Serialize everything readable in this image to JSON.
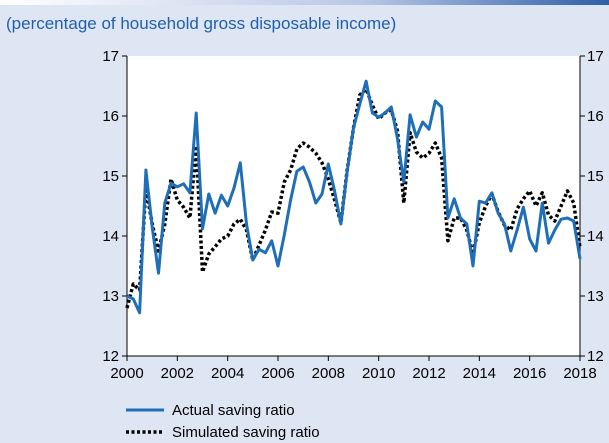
{
  "subtitle": "(percentage of household gross disposable income)",
  "chart_data": {
    "type": "line",
    "x": [
      2000.0,
      2000.25,
      2000.5,
      2000.75,
      2001.0,
      2001.25,
      2001.5,
      2001.75,
      2002.0,
      2002.25,
      2002.5,
      2002.75,
      2003.0,
      2003.25,
      2003.5,
      2003.75,
      2004.0,
      2004.25,
      2004.5,
      2004.75,
      2005.0,
      2005.25,
      2005.5,
      2005.75,
      2006.0,
      2006.25,
      2006.5,
      2006.75,
      2007.0,
      2007.25,
      2007.5,
      2007.75,
      2008.0,
      2008.25,
      2008.5,
      2008.75,
      2009.0,
      2009.25,
      2009.5,
      2009.75,
      2010.0,
      2010.25,
      2010.5,
      2010.75,
      2011.0,
      2011.25,
      2011.5,
      2011.75,
      2012.0,
      2012.25,
      2012.5,
      2012.75,
      2013.0,
      2013.25,
      2013.5,
      2013.75,
      2014.0,
      2014.25,
      2014.5,
      2014.75,
      2015.0,
      2015.25,
      2015.5,
      2015.75,
      2016.0,
      2016.25,
      2016.5,
      2016.75,
      2017.0,
      2017.25,
      2017.5,
      2017.75,
      2018.0
    ],
    "series": [
      {
        "name": "Actual saving ratio",
        "color": "#1f6fb8",
        "style": "solid",
        "values": [
          13.0,
          12.95,
          12.72,
          15.1,
          14.15,
          13.38,
          14.55,
          14.88,
          14.82,
          14.87,
          14.72,
          16.05,
          14.12,
          14.7,
          14.38,
          14.68,
          14.5,
          14.8,
          15.22,
          14.2,
          13.6,
          13.78,
          13.72,
          13.92,
          13.5,
          14.02,
          14.6,
          15.08,
          15.15,
          14.9,
          14.55,
          14.7,
          15.2,
          14.75,
          14.2,
          15.08,
          15.8,
          16.2,
          16.58,
          16.05,
          15.98,
          16.05,
          16.15,
          15.62,
          14.9,
          16.02,
          15.65,
          15.9,
          15.78,
          16.25,
          16.15,
          14.3,
          14.62,
          14.3,
          14.2,
          13.5,
          14.58,
          14.55,
          14.72,
          14.38,
          14.2,
          13.75,
          14.1,
          14.48,
          13.95,
          13.75,
          14.55,
          13.88,
          14.1,
          14.28,
          14.3,
          14.25,
          13.62
        ]
      },
      {
        "name": "Simulated saving ratio",
        "color": "#000000",
        "style": "dotted",
        "values": [
          12.8,
          13.2,
          13.1,
          14.8,
          14.2,
          13.75,
          14.2,
          14.95,
          14.6,
          14.48,
          14.3,
          15.5,
          13.4,
          13.7,
          13.82,
          13.95,
          14.0,
          14.2,
          14.28,
          14.1,
          13.6,
          13.85,
          14.1,
          14.4,
          14.38,
          14.9,
          15.1,
          15.45,
          15.55,
          15.48,
          15.38,
          15.22,
          14.95,
          14.6,
          14.22,
          15.1,
          15.8,
          16.35,
          16.45,
          16.18,
          15.95,
          16.05,
          16.1,
          15.75,
          14.55,
          15.72,
          15.4,
          15.3,
          15.38,
          15.55,
          15.3,
          13.92,
          14.3,
          14.3,
          14.1,
          13.7,
          14.22,
          14.5,
          14.7,
          14.4,
          14.18,
          14.1,
          14.45,
          14.62,
          14.75,
          14.5,
          14.72,
          14.35,
          14.25,
          14.5,
          14.75,
          14.55,
          13.8
        ]
      }
    ],
    "x_ticks": [
      "2000",
      "2002",
      "2004",
      "2006",
      "2008",
      "2010",
      "2012",
      "2014",
      "2016",
      "2018"
    ],
    "y_ticks": [
      "12",
      "13",
      "14",
      "15",
      "16",
      "17"
    ],
    "xlim": [
      2000,
      2018
    ],
    "ylim": [
      12,
      17
    ],
    "grid": false,
    "legend_position": "bottom-left"
  }
}
